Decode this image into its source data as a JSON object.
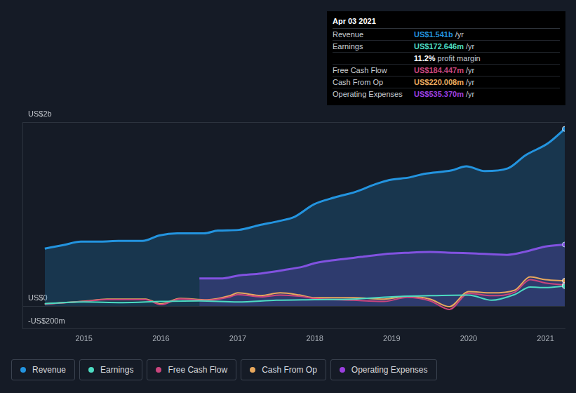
{
  "chart_data": {
    "type": "line",
    "xlim": [
      2014.2,
      2021.25
    ],
    "xticks": [
      2015,
      2016,
      2017,
      2018,
      2019,
      2020,
      2021
    ],
    "ylim": [
      -200,
      1600
    ],
    "yticks": [
      {
        "value": -200,
        "label": "-US$200m"
      },
      {
        "value": 0,
        "label": "US$0"
      },
      {
        "value": 1600,
        "label": "US$2b"
      }
    ],
    "grid": true,
    "legend": "bottom left",
    "series": [
      {
        "name": "Revenue",
        "color": "#2394df",
        "type": "area",
        "x": [
          2014.49,
          2014.73,
          2014.96,
          2015.22,
          2015.45,
          2015.76,
          2015.98,
          2016.21,
          2016.56,
          2016.74,
          2017.01,
          2017.28,
          2017.54,
          2017.74,
          2017.99,
          2018.26,
          2018.53,
          2018.79,
          2018.97,
          2019.24,
          2019.42,
          2019.78,
          2019.97,
          2020.21,
          2020.51,
          2020.74,
          2021.03,
          2021.25
        ],
        "values": [
          500,
          530,
          560,
          560,
          566,
          566,
          614,
          632,
          632,
          656,
          662,
          704,
          740,
          777,
          885,
          945,
          993,
          1060,
          1096,
          1120,
          1150,
          1180,
          1216,
          1174,
          1198,
          1312,
          1415,
          1541
        ]
      },
      {
        "name": "Earnings",
        "color": "#4ddcc2",
        "type": "line",
        "x": [
          2014.49,
          2015,
          2015.5,
          2016,
          2016.5,
          2017,
          2017.5,
          2018,
          2018.5,
          2019,
          2019.5,
          2020,
          2020.3,
          2020.6,
          2020.8,
          2021.0,
          2021.25
        ],
        "values": [
          20,
          35,
          30,
          40,
          45,
          35,
          50,
          55,
          60,
          80,
          90,
          95,
          50,
          100,
          165,
          160,
          173
        ]
      },
      {
        "name": "Free Cash Flow",
        "color": "#c9457d",
        "type": "line",
        "x": [
          2014.49,
          2015,
          2015.3,
          2015.8,
          2016,
          2016.25,
          2016.6,
          2016.9,
          2017.0,
          2017.3,
          2017.55,
          2017.8,
          2018.0,
          2018.5,
          2018.9,
          2019.2,
          2019.5,
          2019.75,
          2020.0,
          2020.3,
          2020.6,
          2020.8,
          2021.0,
          2021.25
        ],
        "values": [
          16,
          40,
          55,
          55,
          12,
          62,
          50,
          80,
          100,
          80,
          95,
          85,
          65,
          50,
          40,
          75,
          45,
          -30,
          110,
          90,
          120,
          230,
          200,
          184
        ]
      },
      {
        "name": "Cash From Op",
        "color": "#e8a85d",
        "type": "line",
        "x": [
          2014.49,
          2015,
          2015.3,
          2015.8,
          2016,
          2016.25,
          2016.6,
          2016.9,
          2017.0,
          2017.3,
          2017.55,
          2017.8,
          2018.0,
          2018.5,
          2018.9,
          2019.2,
          2019.5,
          2019.75,
          2020.0,
          2020.3,
          2020.6,
          2020.8,
          2021.0,
          2021.25
        ],
        "values": [
          18,
          42,
          60,
          60,
          18,
          66,
          54,
          90,
          114,
          90,
          114,
          96,
          72,
          72,
          60,
          84,
          60,
          -6,
          126,
          114,
          138,
          253,
          229,
          220
        ]
      },
      {
        "name": "Operating Expenses",
        "color": "#9b3fe0",
        "type": "area",
        "x": [
          2016.5,
          2016.8,
          2017.0,
          2017.3,
          2017.6,
          2017.85,
          2018.0,
          2018.3,
          2018.6,
          2018.9,
          2019.2,
          2019.5,
          2019.8,
          2020.1,
          2020.5,
          2020.75,
          2021.0,
          2021.25
        ],
        "values": [
          240,
          240,
          265,
          283,
          313,
          343,
          373,
          403,
          427,
          451,
          463,
          470,
          463,
          457,
          445,
          475,
          518,
          535
        ]
      }
    ]
  },
  "info_box": {
    "date": "Apr 03 2021",
    "rows": [
      {
        "label": "Revenue",
        "value": "US$1.541b",
        "unit": "/yr"
      },
      {
        "label": "Earnings",
        "value": "US$172.646m",
        "unit": "/yr"
      },
      {
        "value": "11.2%",
        "unit": "profit margin"
      },
      {
        "label": "Free Cash Flow",
        "value": "US$184.447m",
        "unit": "/yr"
      },
      {
        "label": "Cash From Op",
        "value": "US$220.008m",
        "unit": "/yr"
      },
      {
        "label": "Operating Expenses",
        "value": "US$535.370m",
        "unit": "/yr"
      }
    ]
  }
}
